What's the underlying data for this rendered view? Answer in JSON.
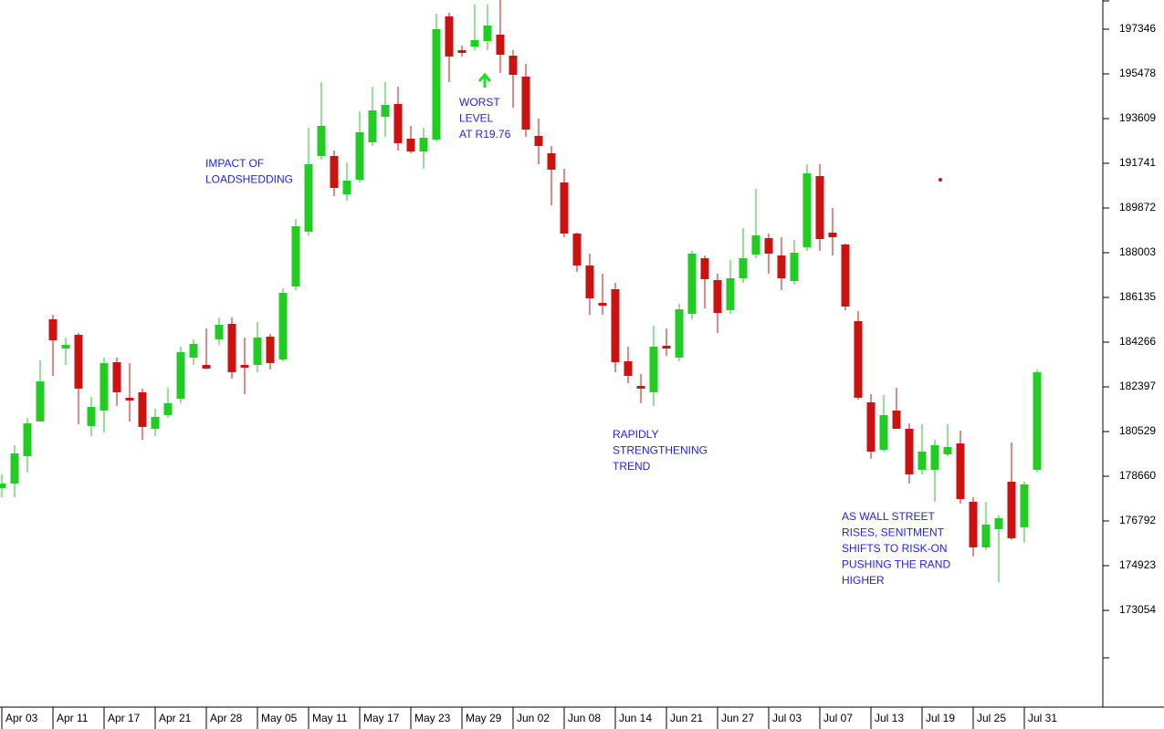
{
  "chart_data": {
    "type": "candlestick",
    "categories": [
      "Apr 03",
      null,
      null,
      null,
      "Apr 11",
      null,
      null,
      null,
      "Apr 17",
      null,
      null,
      null,
      "Apr 21",
      null,
      null,
      null,
      "Apr 28",
      null,
      null,
      null,
      "May 05",
      null,
      null,
      null,
      "May 11",
      null,
      null,
      null,
      "May 17",
      null,
      null,
      null,
      "May 23",
      null,
      null,
      null,
      "May 29",
      null,
      null,
      null,
      "Jun 02",
      null,
      null,
      null,
      "Jun 08",
      null,
      null,
      null,
      "Jun 14",
      null,
      null,
      null,
      "Jun 21",
      null,
      null,
      null,
      "Jun 27",
      null,
      null,
      null,
      "Jul 03",
      null,
      null,
      null,
      "Jul 07",
      null,
      null,
      null,
      "Jul 13",
      null,
      null,
      null,
      "Jul 19",
      null,
      null,
      null,
      "Jul 25",
      null,
      null,
      null,
      "Jul 31",
      null
    ],
    "open": [
      178166,
      178357,
      179501,
      180950,
      185220,
      184000,
      184572,
      180759,
      181407,
      183428,
      181941,
      182170,
      180645,
      181217,
      181903,
      183619,
      183314,
      184382,
      185030,
      183314,
      183314,
      184496,
      183543,
      186593,
      188881,
      192046,
      192046,
      190444,
      191054,
      192618,
      193685,
      194219,
      192770,
      192236,
      192732,
      197880,
      196469,
      196621,
      196850,
      197117,
      196240,
      195363,
      192885,
      192160,
      190940,
      188805,
      187470,
      185907,
      186479,
      183467,
      182437,
      182170,
      184115,
      183619,
      185449,
      187775,
      186860,
      185602,
      186936,
      187928,
      188614,
      187890,
      186822,
      188233,
      191207,
      188843,
      188347,
      185144,
      181751,
      179768,
      181407,
      180645,
      178929,
      178929,
      179577,
      180035,
      177594,
      175688,
      176451,
      178433,
      176527,
      178929
    ],
    "high": [
      178738,
      179959,
      181102,
      183505,
      185411,
      184458,
      184649,
      181979,
      183619,
      183619,
      183390,
      182323,
      181484,
      182361,
      184077,
      184382,
      184839,
      185297,
      185297,
      184458,
      185106,
      184610,
      186517,
      189415,
      193228,
      195134,
      192275,
      191779,
      193914,
      194944,
      195134,
      194944,
      193304,
      193228,
      197994,
      198032,
      196659,
      198375,
      198375,
      198566,
      196469,
      195897,
      193609,
      192465,
      191512,
      188843,
      187966,
      187127,
      186746,
      184077,
      182933,
      184954,
      184839,
      185869,
      188080,
      187890,
      187127,
      187699,
      189033,
      190673,
      188805,
      188652,
      188538,
      191703,
      191703,
      189872,
      188385,
      185564,
      182094,
      182056,
      182361,
      180874,
      180836,
      180187,
      180836,
      180569,
      177785,
      177594,
      177023,
      180073,
      178433,
      183123
    ],
    "low": [
      177785,
      177785,
      178815,
      180950,
      182856,
      183314,
      180836,
      180340,
      180492,
      181598,
      180950,
      180187,
      180340,
      181102,
      181713,
      183314,
      183123,
      184153,
      182742,
      182094,
      183009,
      183123,
      183467,
      186441,
      188728,
      191893,
      190368,
      190177,
      190940,
      192465,
      192846,
      192275,
      192160,
      191512,
      192656,
      195134,
      196202,
      196469,
      196469,
      195516,
      194067,
      192846,
      191703,
      189987,
      188652,
      187203,
      185411,
      185411,
      183009,
      182551,
      181713,
      181598,
      183695,
      183467,
      185220,
      185678,
      184649,
      185449,
      186746,
      187775,
      187127,
      186441,
      186669,
      188080,
      188080,
      187890,
      185602,
      181865,
      179387,
      179692,
      180645,
      178357,
      178738,
      177594,
      179501,
      177518,
      175307,
      175574,
      174239,
      175993,
      175879,
      178815
    ],
    "close": [
      178357,
      179615,
      180874,
      182628,
      184344,
      184153,
      182323,
      181560,
      183390,
      182170,
      181827,
      180721,
      181141,
      181713,
      183848,
      184191,
      183161,
      184992,
      183009,
      183200,
      184458,
      183390,
      186326,
      189110,
      191703,
      193304,
      190711,
      191016,
      193037,
      193952,
      194181,
      192580,
      192236,
      192808,
      197346,
      196202,
      196354,
      196888,
      197498,
      196278,
      195439,
      193152,
      192465,
      191474,
      188805,
      187470,
      186097,
      185792,
      183428,
      182856,
      182323,
      184077,
      184000,
      185640,
      187966,
      186898,
      185487,
      186936,
      187775,
      188728,
      187966,
      186936,
      188004,
      191321,
      188576,
      188652,
      185754,
      181941,
      179692,
      181217,
      180645,
      178738,
      179692,
      179959,
      179882,
      177709,
      175688,
      176641,
      176908,
      176069,
      178319,
      183009
    ],
    "up_color": "#22cc22",
    "down_color": "#cc1111",
    "ylim": [
      169088,
      198566
    ],
    "yticks": [
      197346,
      195478,
      193609,
      191741,
      189872,
      188003,
      186135,
      184266,
      182397,
      180529,
      178660,
      176792,
      174923,
      173054
    ],
    "annotations": [
      {
        "lines": [
          "IMPACT OF",
          "LOADSHEDDING"
        ]
      },
      {
        "lines": [
          "WORST",
          "LEVEL",
          "AT R19.76"
        ]
      },
      {
        "lines": [
          "RAPIDLY",
          "STRENGTHENING",
          "TREND"
        ]
      },
      {
        "lines": [
          "AS WALL STREET",
          "RISES, SENITMENT",
          "SHIFTS TO RISK-ON",
          "PUSHING THE RAND",
          "HIGHER"
        ]
      }
    ]
  }
}
